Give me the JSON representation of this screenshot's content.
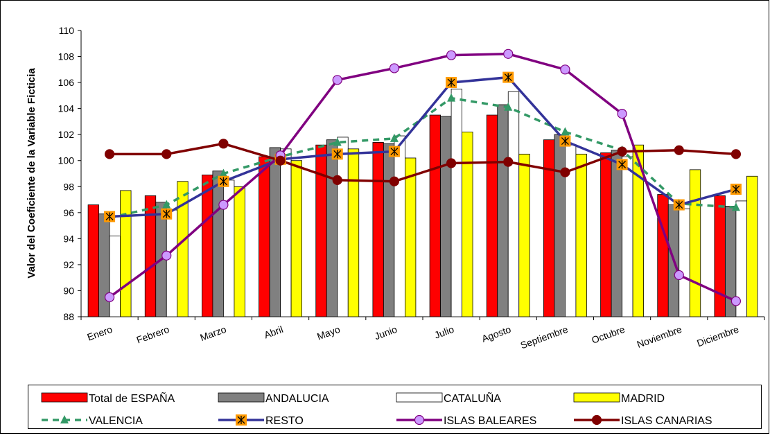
{
  "chart_data": {
    "type": "bar-line",
    "y_label": "Valor del Coeficiente de la Variable Ficticia",
    "categories": [
      "Enero",
      "Febrero",
      "Marzo",
      "Abril",
      "Mayo",
      "Junio",
      "Julio",
      "Agosto",
      "Septiembre",
      "Octubre",
      "Noviembre",
      "Diciembre"
    ],
    "ylim": [
      88,
      110
    ],
    "yticks": [
      88,
      90,
      92,
      94,
      96,
      98,
      100,
      102,
      104,
      106,
      108,
      110
    ],
    "series": [
      {
        "name": "Total de ESPAÑA",
        "kind": "bar",
        "color": "#ff0000",
        "values": [
          96.6,
          97.3,
          98.9,
          100.3,
          101.2,
          101.4,
          103.5,
          103.5,
          101.6,
          100.6,
          97.4,
          97.3
        ]
      },
      {
        "name": "ANDALUCIA",
        "kind": "bar",
        "color": "#808080",
        "values": [
          95.9,
          96.8,
          99.2,
          101.0,
          101.6,
          101.3,
          103.4,
          104.3,
          102.0,
          100.8,
          96.6,
          96.5
        ]
      },
      {
        "name": "CATALUÑA",
        "kind": "bar",
        "color": "#ffffff",
        "values": [
          94.2,
          96.2,
          98.5,
          100.9,
          101.8,
          101.9,
          105.5,
          105.3,
          101.2,
          100.3,
          96.3,
          96.9
        ]
      },
      {
        "name": "MADRID",
        "kind": "bar",
        "color": "#ffff00",
        "values": [
          97.7,
          98.4,
          98.0,
          100.0,
          100.9,
          100.2,
          102.2,
          100.5,
          100.5,
          101.2,
          99.3,
          98.8
        ]
      },
      {
        "name": "VALENCIA",
        "kind": "line",
        "color": "#339966",
        "dashed": true,
        "marker": "triangle",
        "marker_color": "#339966",
        "values": [
          95.6,
          96.6,
          99.0,
          100.3,
          101.4,
          101.7,
          104.8,
          104.1,
          102.2,
          100.8,
          96.7,
          96.4
        ]
      },
      {
        "name": "RESTO",
        "kind": "line",
        "color": "#333399",
        "dashed": false,
        "marker": "star-square",
        "marker_color": "#ff9900",
        "values": [
          95.7,
          95.9,
          98.4,
          100.1,
          100.5,
          100.7,
          106.0,
          106.4,
          101.5,
          99.7,
          96.6,
          97.8
        ]
      },
      {
        "name": "ISLAS BALEARES",
        "kind": "line",
        "color": "#800080",
        "dashed": false,
        "marker": "circle",
        "marker_color": "#cc99ff",
        "values": [
          89.5,
          92.7,
          96.6,
          100.4,
          106.2,
          107.1,
          108.1,
          108.2,
          107.0,
          103.6,
          91.2,
          89.2
        ]
      },
      {
        "name": "ISLAS CANARIAS",
        "kind": "line",
        "color": "#800000",
        "dashed": false,
        "marker": "circle",
        "marker_color": "#800000",
        "values": [
          100.5,
          100.5,
          101.3,
          100.0,
          98.5,
          98.4,
          99.8,
          99.9,
          99.1,
          100.7,
          100.8,
          100.5
        ]
      }
    ]
  }
}
